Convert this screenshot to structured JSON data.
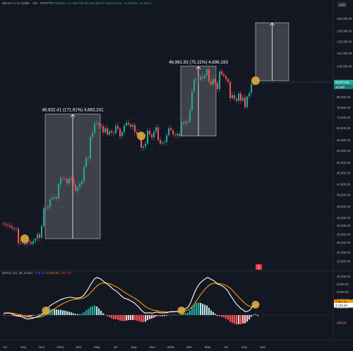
{
  "header": {
    "symbol": "Bitcoin / U.S. Dollar · 1W · CRYPTO",
    "ohlc": "O96,501.12 H99,798.38 L93,395.67 C95,674.62 −5,225.93 (−5.18%)",
    "currency": "USD"
  },
  "price_badges": {
    "current": "95,674.62",
    "countdown": "1d 10h"
  },
  "macd_header": {
    "title": "MACD (12, 26, close)",
    "hist": "−225.04",
    "macd": "2,742.40",
    "signal": "2,967.44"
  },
  "macd_badges": {
    "signal": "2,967.44",
    "macd": "2,742.40",
    "hist": "−225.04"
  },
  "annotations": [
    {
      "text": "46,632.41 (171.61%) 4,663,241"
    },
    {
      "text": "46,961.93 (75.22%) 4,696,193"
    }
  ],
  "chart_data": [
    {
      "type": "candlestick",
      "title": "Bitcoin / U.S. Dollar · 1W",
      "scale": "log",
      "x_ticks": [
        "Jul",
        "Sep",
        "Nov",
        "2024",
        "Mar",
        "May",
        "Jul",
        "Sep",
        "Nov",
        "2025",
        "Mar",
        "May",
        "Jul",
        "Sep",
        "Nov"
      ],
      "y_ticks": [
        160000,
        145000,
        133000,
        121000,
        109000,
        97000,
        85000,
        78000,
        72000,
        66000,
        60000,
        55000,
        50000,
        46000,
        42000,
        38500,
        35000,
        32000,
        30000,
        28000,
        26200,
        24200,
        22500
      ],
      "y_tick_labels": [
        "160,000.00",
        "145,000.00",
        "133,000.00",
        "121,000.00",
        "109,000.00",
        "97,000.00",
        "85,000.00",
        "78,000.00",
        "72,000.00",
        "66,000.00",
        "60,000.00",
        "55,000.00",
        "50,000.00",
        "46,000.00",
        "42,000.00",
        "38,500.00",
        "35,000.00",
        "32,000.00",
        "30,000.00",
        "28,000.00",
        "26,200.00",
        "24,200.00",
        "22,500.00"
      ],
      "ylim": [
        21000,
        180000
      ],
      "weekly_close": [
        30500,
        30200,
        30100,
        29800,
        29400,
        29200,
        29300,
        26100,
        26000,
        26100,
        25800,
        26600,
        26300,
        25900,
        26500,
        27000,
        28000,
        27200,
        29900,
        34500,
        34600,
        35000,
        37100,
        37500,
        37800,
        37400,
        42000,
        44000,
        43800,
        43700,
        42300,
        44000,
        43900,
        41700,
        39800,
        41000,
        42100,
        43000,
        48300,
        52000,
        51700,
        61400,
        63500,
        68500,
        68700,
        67800,
        67200,
        63800,
        66000,
        62800,
        64500,
        63800,
        63400,
        67200,
        65700,
        61800,
        64000,
        67500,
        69000,
        68100,
        66800,
        67700,
        64100,
        62700,
        63500,
        56400,
        57000,
        58300,
        64700,
        62700,
        61300,
        64200,
        66500,
        60000,
        58300,
        58700,
        59100,
        62400,
        66000,
        65000,
        62800,
        62300,
        63000,
        62000,
        69200,
        68500,
        69800,
        69500,
        76200,
        88800,
        98000,
        98200,
        97600,
        100000,
        99000,
        101400,
        106300,
        96300,
        94000,
        98400,
        95300,
        90600,
        104600,
        102000,
        100700,
        98200,
        96100,
        84100,
        86400,
        83800,
        82400,
        87500,
        82500,
        84500,
        78400,
        85300,
        87800,
        94300,
        95800,
        96500,
        95674.62
      ],
      "highlighted_rectangles": [
        {
          "label": "46,632.41 (171.61%) 4,663,241",
          "from": "Sep 2023",
          "to": "Mar 2024",
          "low": 27000,
          "high": 74000
        },
        {
          "label": "46,961.93 (75.22%) 4,696,193",
          "from": "Sep 2024",
          "to": "Dec 2024",
          "low": 62000,
          "high": 109000
        },
        {
          "label": "",
          "from": "Apr 2025",
          "to": "Jun 2025",
          "low": 97000,
          "high": 155000
        }
      ],
      "markers": [
        {
          "label": "Sep 2023 breakout",
          "value": 27000
        },
        {
          "label": "Sep 2024 breakout",
          "value": 62000
        },
        {
          "label": "Apr 2025",
          "value": 97000
        }
      ],
      "current_price": 95674.62,
      "colors": {
        "up": "#26a69a",
        "down": "#ef5350",
        "box": "#ffffff",
        "marker": "#e0a93b",
        "background": "#131722"
      }
    },
    {
      "type": "macd",
      "title": "MACD (12, 26, close)",
      "y_ticks": [
        10000,
        8000,
        6000,
        4000,
        2000,
        -2000
      ],
      "y_tick_labels": [
        "10,000.00",
        "8,000.00",
        "6,000.00",
        "4,000.00",
        "2,000.00",
        "−2,000.00"
      ],
      "ylim": [
        -4000,
        11000
      ],
      "series": [
        {
          "name": "MACD",
          "color": "#ffffff",
          "values": [
            400,
            500,
            600,
            500,
            300,
            100,
            -100,
            -200,
            -300,
            -500,
            -800,
            -1000,
            -1000,
            -900,
            -800,
            -600,
            -400,
            -200,
            100,
            600,
            1200,
            1800,
            2400,
            2800,
            3100,
            3400,
            3700,
            4000,
            4200,
            4400,
            4500,
            4600,
            4600,
            4500,
            4400,
            4400,
            4500,
            4700,
            5200,
            6000,
            6800,
            7800,
            8600,
            9400,
            9700,
            9600,
            9300,
            8800,
            8400,
            8000,
            7600,
            7100,
            6600,
            6300,
            5900,
            5300,
            4800,
            4400,
            4200,
            4000,
            3700,
            3400,
            3000,
            2500,
            2000,
            1300,
            800,
            500,
            600,
            600,
            500,
            600,
            800,
            700,
            600,
            600,
            600,
            600,
            800,
            900,
            900,
            900,
            900,
            900,
            1200,
            1400,
            1700,
            2000,
            2800,
            4200,
            5600,
            6800,
            7700,
            8400,
            8900,
            9300,
            9700,
            9600,
            9200,
            9000,
            8600,
            8000,
            7900,
            7600,
            7300,
            6800,
            6200,
            5200,
            4400,
            3600,
            2800,
            2300,
            1700,
            1400,
            900,
            900,
            1200,
            1800,
            2400,
            2700,
            2742.4
          ]
        },
        {
          "name": "Signal",
          "color": "#ff9800",
          "values": [
            500,
            520,
            540,
            540,
            500,
            420,
            320,
            200,
            90,
            -40,
            -190,
            -350,
            -480,
            -560,
            -610,
            -610,
            -570,
            -500,
            -380,
            -180,
            90,
            430,
            830,
            1220,
            1600,
            1960,
            2310,
            2650,
            2960,
            3250,
            3500,
            3720,
            3900,
            4020,
            4100,
            4160,
            4220,
            4310,
            4480,
            4780,
            5180,
            5710,
            6290,
            6910,
            7470,
            7900,
            8180,
            8300,
            8320,
            8260,
            8130,
            7920,
            7660,
            7390,
            7090,
            6730,
            6350,
            5960,
            5610,
            5290,
            4970,
            4650,
            4320,
            3960,
            3570,
            3110,
            2650,
            2220,
            1900,
            1640,
            1420,
            1260,
            1170,
            1080,
            980,
            900,
            840,
            790,
            790,
            810,
            820,
            840,
            850,
            860,
            930,
            1020,
            1160,
            1330,
            1620,
            2140,
            2830,
            3620,
            4440,
            5230,
            5960,
            6630,
            7240,
            7710,
            8010,
            8210,
            8290,
            8230,
            8170,
            8060,
            7910,
            7690,
            7400,
            6960,
            6450,
            5880,
            5260,
            4670,
            4080,
            3540,
            3020,
            2600,
            2320,
            2210,
            2250,
            2340,
            2967.44
          ]
        },
        {
          "name": "Histogram",
          "type": "histogram",
          "values": [
            -100,
            -20,
            60,
            -40,
            -200,
            -320,
            -420,
            -400,
            -390,
            -460,
            -610,
            -650,
            -520,
            -340,
            -190,
            10,
            170,
            300,
            480,
            780,
            1110,
            1370,
            1570,
            1580,
            1500,
            1440,
            1390,
            1350,
            1240,
            1150,
            1000,
            880,
            700,
            480,
            300,
            240,
            280,
            390,
            720,
            1220,
            1620,
            2090,
            2310,
            2490,
            2230,
            1700,
            1120,
            500,
            80,
            -260,
            -530,
            -820,
            -1060,
            -1090,
            -1190,
            -1430,
            -1550,
            -1560,
            -1410,
            -1290,
            -1270,
            -1250,
            -1320,
            -1460,
            -1570,
            -1810,
            -1850,
            -1720,
            -1300,
            -1040,
            -920,
            -660,
            -370,
            -380,
            -380,
            -300,
            -240,
            -190,
            10,
            90,
            80,
            60,
            50,
            40,
            270,
            380,
            540,
            670,
            1180,
            2060,
            2770,
            3180,
            3260,
            3170,
            2940,
            2670,
            2460,
            1890,
            1190,
            790,
            310,
            -230,
            -270,
            -460,
            -610,
            -890,
            -1200,
            -1760,
            -2050,
            -2280,
            -2460,
            -2370,
            -2380,
            -2140,
            -2120,
            -1700,
            -1120,
            -410,
            150,
            360,
            -225.04
          ]
        }
      ],
      "markers": [
        {
          "label": "Oct 2023 crossover"
        },
        {
          "label": "Sep 2024 crossover"
        },
        {
          "label": "May 2025 crossover"
        }
      ]
    }
  ]
}
